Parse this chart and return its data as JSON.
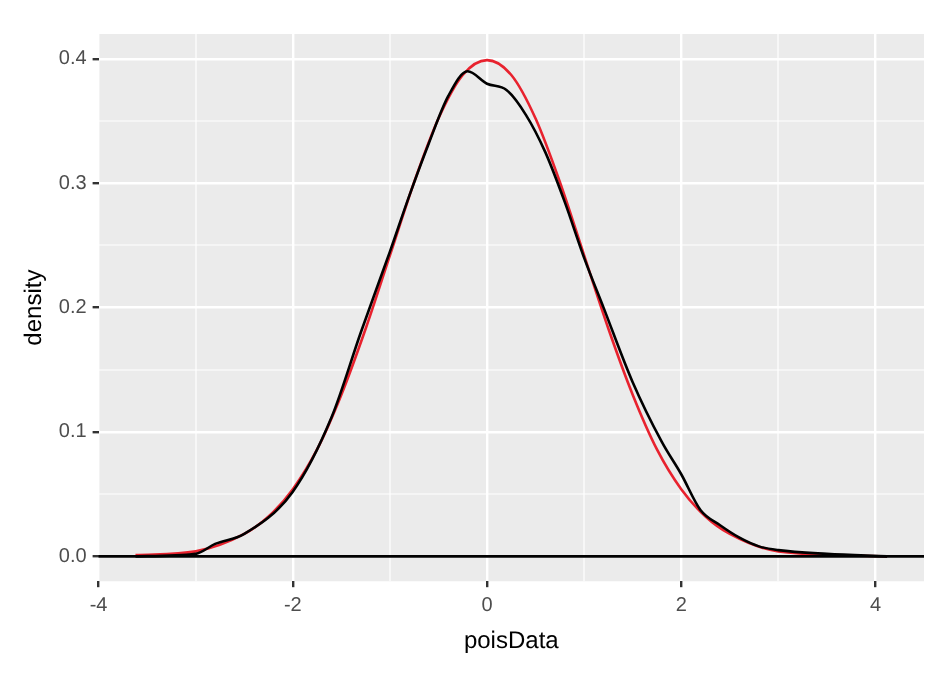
{
  "chart_data": {
    "type": "line",
    "xlabel": "poisData",
    "ylabel": "density",
    "xlim": [
      -4,
      4.5
    ],
    "ylim": [
      -0.02,
      0.42
    ],
    "xticks": [
      -4,
      {
        "value": -3,
        "label": null
      },
      -2,
      {
        "value": -1,
        "label": null
      },
      0,
      {
        "value": 1,
        "label": null
      },
      2,
      {
        "value": 3,
        "label": null
      },
      4
    ],
    "yticks": [
      {
        "value": 0,
        "label": "0.0"
      },
      {
        "value": 0.05,
        "label": null
      },
      0.1,
      {
        "value": 0.15,
        "label": null
      },
      0.2,
      {
        "value": 0.25,
        "label": null
      },
      0.3,
      {
        "value": 0.35,
        "label": null
      },
      0.4
    ],
    "grid": true,
    "ref_lines": [
      {
        "axis": "y",
        "value": 0,
        "color": "#000000",
        "line_style": "solid"
      }
    ],
    "marker": "none",
    "line_style": "solid",
    "series": [
      {
        "color": "#000000",
        "x": [
          -3.62,
          -3.0,
          -2.8,
          -2.5,
          -2.0,
          -1.6,
          -1.3,
          -1.0,
          -0.8,
          -0.6,
          -0.4,
          -0.2,
          0,
          0.2,
          0.4,
          0.6,
          0.8,
          1.0,
          1.2,
          1.5,
          1.8,
          2.0,
          2.2,
          2.4,
          2.6,
          2.8,
          3.0,
          3.5,
          4.12
        ],
        "values": [
          0,
          0.002,
          0.01,
          0.018,
          0.052,
          0.112,
          0.18,
          0.245,
          0.29,
          0.332,
          0.37,
          0.39,
          0.38,
          0.375,
          0.355,
          0.325,
          0.285,
          0.24,
          0.2,
          0.14,
          0.092,
          0.066,
          0.037,
          0.025,
          0.015,
          0.008,
          0.005,
          0.002,
          0
        ]
      },
      {
        "color": "#e8222e",
        "x": [
          -3.62,
          -3.0,
          -2.5,
          -2.25,
          -2.0,
          -1.75,
          -1.5,
          -1.25,
          -1.0,
          -0.75,
          -0.5,
          -0.25,
          0,
          0.25,
          0.5,
          0.75,
          1.0,
          1.25,
          1.5,
          1.75,
          2.0,
          2.25,
          2.5,
          3.0,
          4.12
        ],
        "values": [
          0.001,
          0.004,
          0.018,
          0.032,
          0.054,
          0.086,
          0.13,
          0.183,
          0.242,
          0.301,
          0.352,
          0.387,
          0.399,
          0.387,
          0.352,
          0.301,
          0.242,
          0.183,
          0.13,
          0.086,
          0.054,
          0.032,
          0.018,
          0.004,
          0
        ]
      }
    ]
  }
}
